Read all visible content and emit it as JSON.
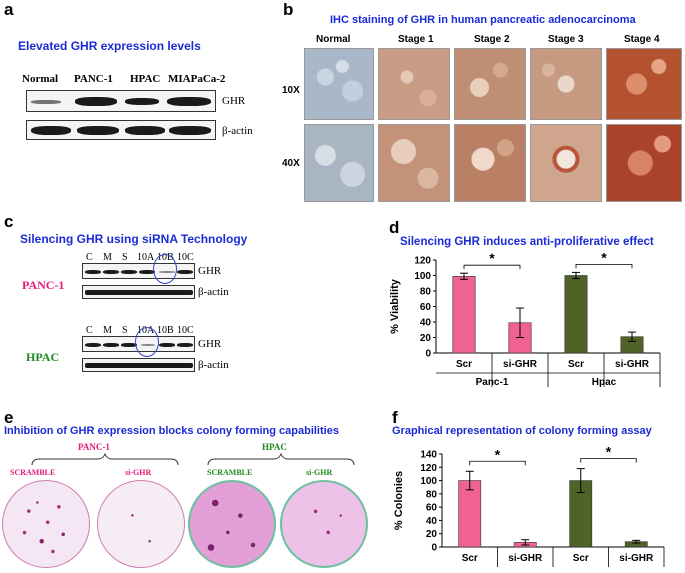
{
  "panel_a": {
    "letter": "a",
    "title": "Elevated GHR expression levels",
    "lanes": [
      "Normal",
      "PANC-1",
      "HPAC",
      "MIAPaCa-2"
    ],
    "row_labels": [
      "GHR",
      "β-actin"
    ]
  },
  "panel_b": {
    "letter": "b",
    "title": "IHC staining of  GHR in human pancreatic adenocarcinoma",
    "columns": [
      "Normal",
      "Stage 1",
      "Stage 2",
      "Stage 3",
      "Stage  4"
    ],
    "rows": [
      "10X",
      "40X"
    ]
  },
  "panel_c": {
    "letter": "c",
    "title": "Silencing GHR using  siRNA Technology",
    "lanes": [
      "C",
      "M",
      "S",
      "10A",
      "10B",
      "10C"
    ],
    "row_labels": [
      "GHR",
      "β-actin"
    ],
    "cell_lines": [
      "PANC-1",
      "HPAC"
    ],
    "cell_line_colors": [
      "#e6197a",
      "#1f8a1f"
    ]
  },
  "panel_d": {
    "letter": "d",
    "title": "Silencing  GHR induces anti-proliferative effect",
    "chart_data": {
      "type": "bar",
      "categories": [
        "Scr",
        "si-GHR",
        "Scr",
        "si-GHR"
      ],
      "groups": [
        "Panc-1",
        "Hpac"
      ],
      "values": [
        99,
        39,
        100,
        21
      ],
      "errors": [
        4,
        19,
        4,
        6
      ],
      "colors": [
        "#f06292",
        "#f06292",
        "#4f6228",
        "#4f6228"
      ],
      "ylabel": "% Viability",
      "ylim": [
        0,
        120
      ],
      "yticks": [
        0,
        20,
        40,
        60,
        80,
        100,
        120
      ],
      "significance": [
        "*",
        "*"
      ]
    }
  },
  "panel_e": {
    "letter": "e",
    "title": "Inhibition of GHR expression blocks colony forming capabilities",
    "groups": [
      {
        "name": "PANC-1",
        "color": "#e6197a",
        "labels": [
          "SCRAMBLE",
          "si-GHR"
        ]
      },
      {
        "name": "HPAC",
        "color": "#1f8a1f",
        "labels": [
          "SCRAMBLE",
          "si-GHR"
        ]
      }
    ]
  },
  "panel_f": {
    "letter": "f",
    "title": "Graphical representation of  colony forming  assay",
    "chart_data": {
      "type": "bar",
      "categories": [
        "Scr",
        "si-GHR",
        "Scr",
        "si-GHR"
      ],
      "values": [
        100,
        7,
        100,
        8
      ],
      "errors": [
        14,
        4,
        18,
        2
      ],
      "colors": [
        "#f06292",
        "#f06292",
        "#4f6228",
        "#4f6228"
      ],
      "ylabel": "%  Colonies",
      "ylim": [
        0,
        140
      ],
      "yticks": [
        0,
        20,
        40,
        60,
        80,
        100,
        120,
        140
      ],
      "significance": [
        "*",
        "*"
      ]
    }
  }
}
